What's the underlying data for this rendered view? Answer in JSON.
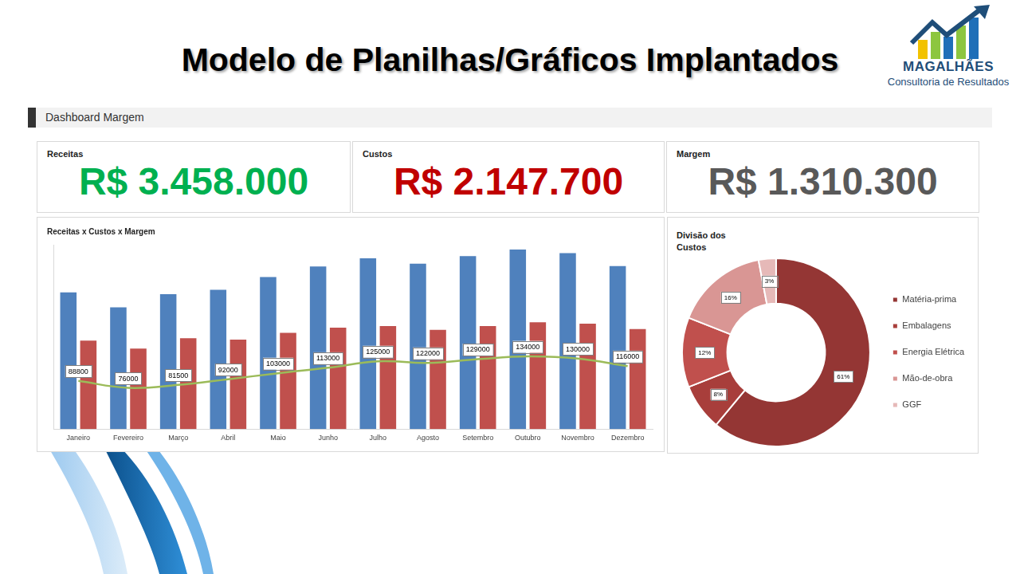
{
  "page": {
    "title": "Modelo de Planilhas/Gráficos Implantados",
    "logo": {
      "name": "MAGALHÃES",
      "tagline": "Consultoria de Resultados"
    },
    "section": "Dashboard Margem",
    "kpis": [
      {
        "label": "Receitas",
        "value": "R$ 3.458.000",
        "color": "#00b050"
      },
      {
        "label": "Custos",
        "value": "R$ 2.147.700",
        "color": "#c00000"
      },
      {
        "label": "Margem",
        "value": "R$ 1.310.300",
        "color": "#595959"
      }
    ]
  },
  "chart_data": [
    {
      "type": "bar",
      "title": "Receitas x Custos x Margem",
      "categories": [
        "Janeiro",
        "Fevereiro",
        "Março",
        "Abril",
        "Maio",
        "Junho",
        "Julho",
        "Agosto",
        "Setembro",
        "Outubro",
        "Novembro",
        "Dezembro"
      ],
      "series": [
        {
          "name": "Receitas",
          "color": "#4f81bd",
          "values": [
            252000,
            224500,
            249000,
            257000,
            280500,
            300000,
            315000,
            305000,
            319000,
            331000,
            324500,
            300500
          ]
        },
        {
          "name": "Custos",
          "color": "#c0504d",
          "values": [
            163200,
            148500,
            167500,
            165000,
            177500,
            187000,
            190000,
            183000,
            190000,
            197000,
            194500,
            184500
          ]
        },
        {
          "name": "Margem",
          "type": "line",
          "color": "#9bbb59",
          "marker": "none",
          "data_labels": true,
          "values": [
            88800,
            76000,
            81500,
            92000,
            103000,
            113000,
            125000,
            122000,
            129000,
            134000,
            130000,
            116000
          ]
        }
      ],
      "ylim": [
        0,
        340000
      ],
      "grid": false,
      "tick_labels": "x"
    },
    {
      "type": "doughnut",
      "title": "Divisão dos Custos",
      "categories": [
        "Matéria-prima",
        "Embalagens",
        "Energia Elétrica",
        "Mão-de-obra",
        "GGF"
      ],
      "values": [
        61,
        8,
        12,
        16,
        3
      ],
      "value_labels": [
        "61%",
        "8%",
        "12%",
        "16%",
        "3%"
      ],
      "colors": [
        "#943634",
        "#a83e3b",
        "#c0504d",
        "#d99694",
        "#e6b9b8"
      ],
      "legend": "right",
      "data_labels": true
    }
  ]
}
